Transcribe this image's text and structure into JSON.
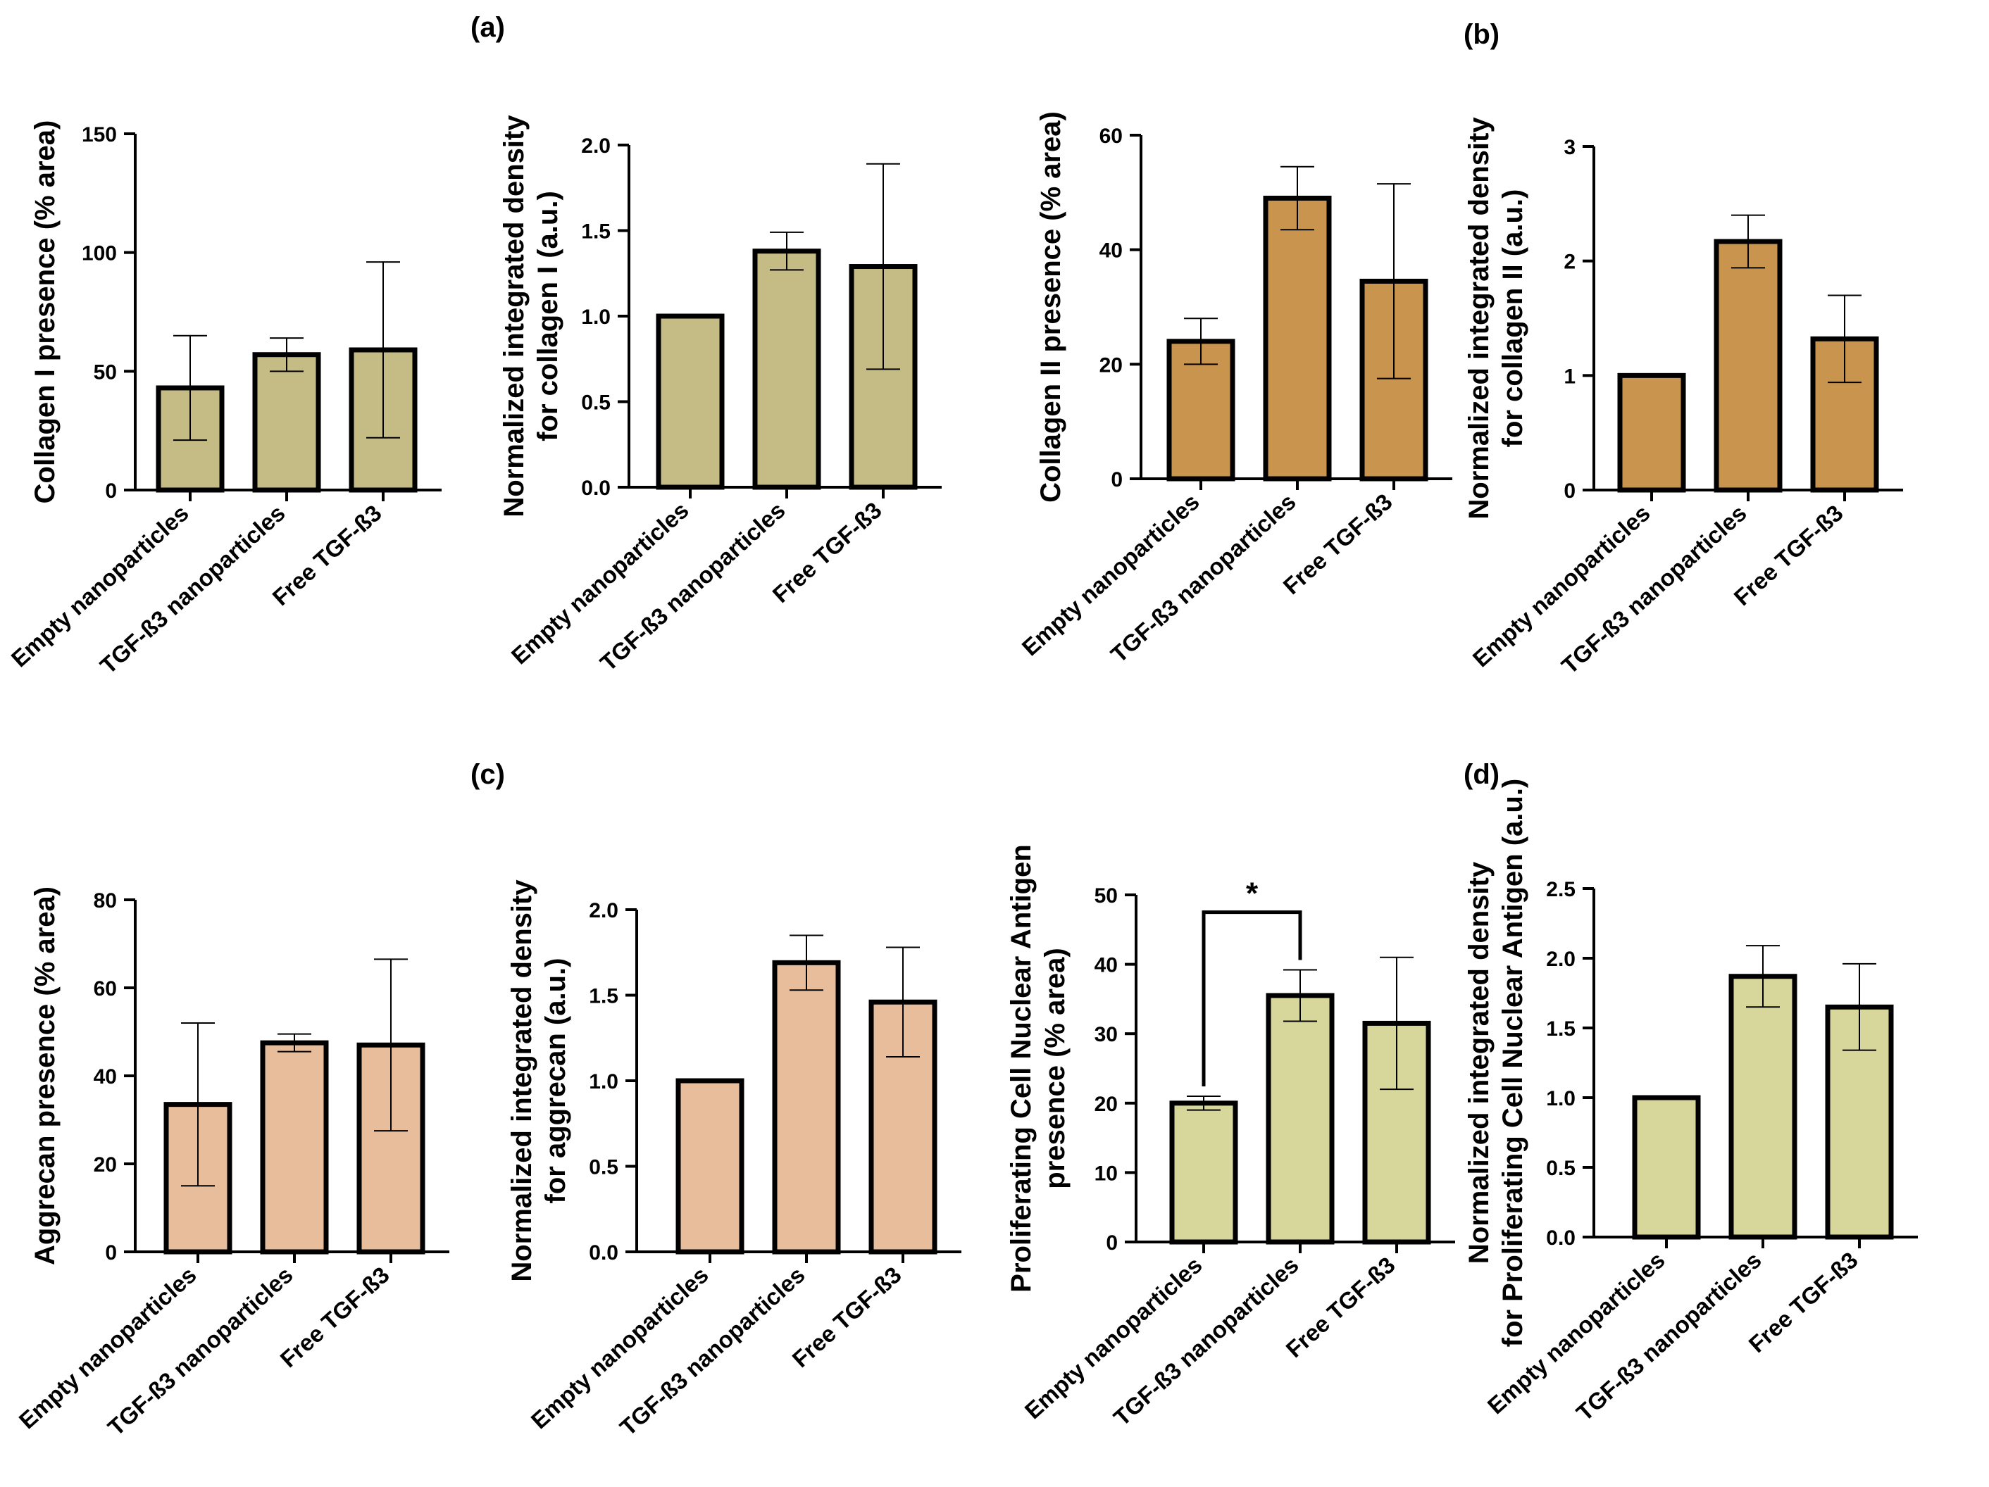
{
  "panel_labels": [
    "(a)",
    "(b)",
    "(c)",
    "(d)"
  ],
  "chart_data": [
    {
      "type": "bar",
      "categories": [
        "Empty nanoparticles",
        "TGF-ß3 nanoparticles",
        "Free TGF-ß3"
      ],
      "values": [
        43,
        57,
        59
      ],
      "errors": [
        22,
        7,
        37
      ],
      "ylabel": [
        "Collagen I presence (% area)"
      ],
      "ylim": [
        0,
        150
      ],
      "yticks": [
        "0",
        "50",
        "100",
        "150"
      ],
      "color": "#c5bb85"
    },
    {
      "type": "bar",
      "categories": [
        "Empty nanoparticles",
        "TGF-ß3 nanoparticles",
        "Free TGF-ß3"
      ],
      "values": [
        1.0,
        1.38,
        1.29
      ],
      "errors": [
        0,
        0.11,
        0.6
      ],
      "ylabel": [
        "Normalized integrated density",
        "for collagen I (a.u.)"
      ],
      "ylim": [
        0,
        2.0
      ],
      "yticks": [
        "0.0",
        "0.5",
        "1.0",
        "1.5",
        "2.0"
      ],
      "color": "#c5bb85"
    },
    {
      "type": "bar",
      "categories": [
        "Empty nanoparticles",
        "TGF-ß3 nanoparticles",
        "Free TGF-ß3"
      ],
      "values": [
        24,
        49,
        34.5
      ],
      "errors": [
        4,
        5.5,
        17
      ],
      "ylabel": [
        "Collagen II presence (% area)"
      ],
      "ylim": [
        0,
        60
      ],
      "yticks": [
        "0",
        "20",
        "40",
        "60"
      ],
      "color": "#c9944e"
    },
    {
      "type": "bar",
      "categories": [
        "Empty nanoparticles",
        "TGF-ß3 nanoparticles",
        "Free TGF-ß3"
      ],
      "values": [
        1.0,
        2.17,
        1.32
      ],
      "errors": [
        0,
        0.23,
        0.38
      ],
      "ylabel": [
        "Normalized integrated density",
        "for collagen II  (a.u.)"
      ],
      "ylim": [
        0,
        3
      ],
      "yticks": [
        "0",
        "1",
        "2",
        "3"
      ],
      "color": "#c9944e"
    },
    {
      "type": "bar",
      "categories": [
        "Empty nanoparticles",
        "TGF-ß3 nanoparticles",
        "Free TGF-ß3"
      ],
      "values": [
        33.5,
        47.5,
        47
      ],
      "errors": [
        18.5,
        2,
        19.5
      ],
      "ylabel": [
        "Aggrecan presence (% area)"
      ],
      "ylim": [
        0,
        80
      ],
      "yticks": [
        "0",
        "20",
        "40",
        "60",
        "80"
      ],
      "color": "#e8bd9c"
    },
    {
      "type": "bar",
      "categories": [
        "Empty nanoparticles",
        "TGF-ß3 nanoparticles",
        "Free TGF-ß3"
      ],
      "values": [
        1.0,
        1.69,
        1.46
      ],
      "errors": [
        0,
        0.16,
        0.32
      ],
      "ylabel": [
        "Normalized integrated density",
        "for aggrecan (a.u.)"
      ],
      "ylim": [
        0,
        2.0
      ],
      "yticks": [
        "0.0",
        "0.5",
        "1.0",
        "1.5",
        "2.0"
      ],
      "color": "#e8bd9c"
    },
    {
      "type": "bar",
      "categories": [
        "Empty nanoparticles",
        "TGF-ß3 nanoparticles",
        "Free TGF-ß3"
      ],
      "values": [
        20,
        35.5,
        31.5
      ],
      "errors": [
        1,
        3.7,
        9.5
      ],
      "ylabel": [
        "Proliferating Cell Nuclear Antigen",
        "presence (% area)"
      ],
      "ylim": [
        0,
        50
      ],
      "yticks": [
        "0",
        "10",
        "20",
        "30",
        "40",
        "50"
      ],
      "color": "#d7d69b",
      "significance": {
        "label": "*",
        "from": 0,
        "to": 1
      }
    },
    {
      "type": "bar",
      "categories": [
        "Empty nanoparticles",
        "TGF-ß3 nanoparticles",
        "Free TGF-ß3"
      ],
      "values": [
        1.0,
        1.87,
        1.65
      ],
      "errors": [
        0,
        0.22,
        0.31
      ],
      "ylabel": [
        "Normalized integrated density",
        "for Proliferating Cell Nuclear Antigen (a.u.)"
      ],
      "ylim": [
        0,
        2.5
      ],
      "yticks": [
        "0.0",
        "0.5",
        "1.0",
        "1.5",
        "2.0",
        "2.5"
      ],
      "color": "#d7d69b"
    }
  ]
}
